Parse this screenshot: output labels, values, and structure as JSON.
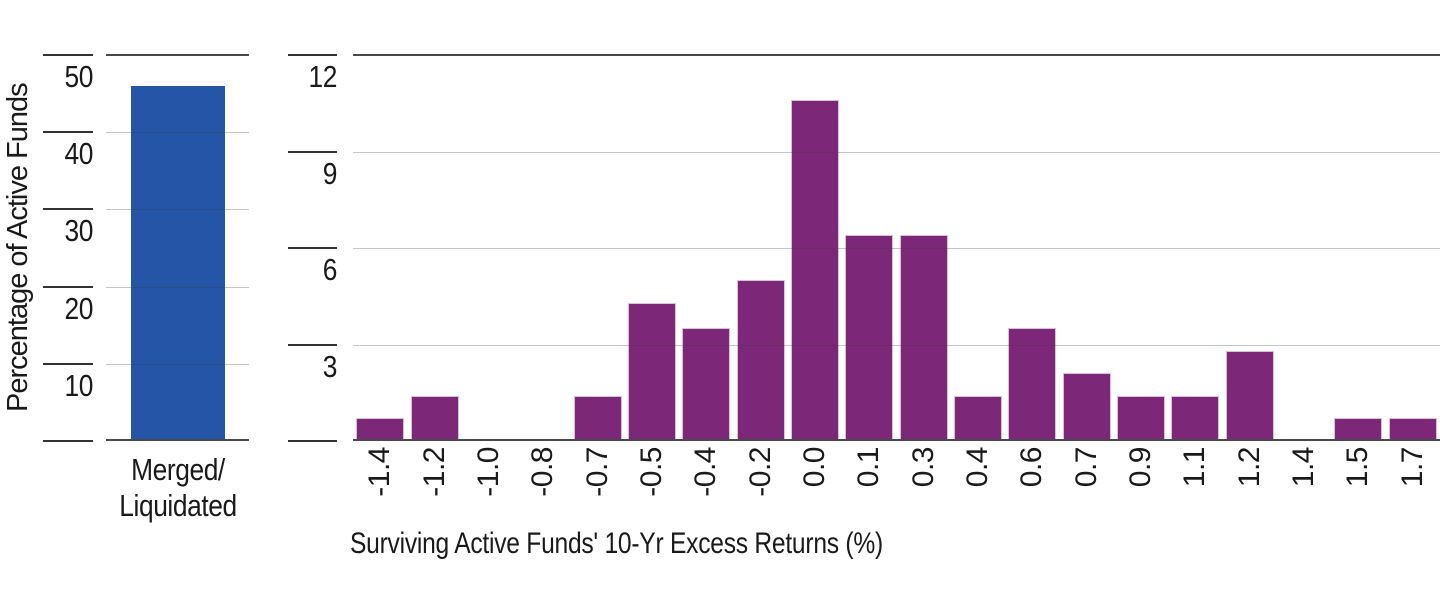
{
  "colors": {
    "blue_bar": "#2555A6",
    "purple_bar": "#7D2779",
    "dark_line": "#4A4A4C",
    "light_grid": "#C7C7C9",
    "text": "#1A1A1A"
  },
  "chart_data": [
    {
      "type": "bar",
      "panel": "left",
      "title": "",
      "ylabel": "Percentage of Active Funds",
      "xlabel": "",
      "categories": [
        "Merged/Liquidated"
      ],
      "category_lines": [
        "Merged/",
        "Liquidated"
      ],
      "values": [
        46
      ],
      "ylim": [
        0,
        50
      ],
      "yticks": [
        10,
        20,
        30,
        40,
        50
      ],
      "ytick_labels": [
        "50",
        "40",
        "30",
        "20",
        "10"
      ],
      "grid": true,
      "legend": "none",
      "bar_color": "#2555A6"
    },
    {
      "type": "bar",
      "panel": "right",
      "title": "",
      "ylabel": "",
      "xlabel": "Surviving Active Funds' 10-Yr Excess Returns (%)",
      "categories": [
        "-1.4",
        "-1.2",
        "-1.0",
        "-0.8",
        "-0.7",
        "-0.5",
        "-0.4",
        "-0.2",
        "0.0",
        "0.1",
        "0.3",
        "0.4",
        "0.6",
        "0.7",
        "0.9",
        "1.1",
        "1.2",
        "1.4",
        "1.5",
        "1.7"
      ],
      "values": [
        0.7,
        1.4,
        0,
        0,
        1.4,
        4.3,
        3.5,
        5.0,
        10.6,
        6.4,
        6.4,
        1.4,
        3.5,
        2.1,
        1.4,
        1.4,
        2.8,
        0,
        0.7,
        0.7
      ],
      "ylim": [
        0,
        12
      ],
      "yticks": [
        3,
        6,
        9,
        12
      ],
      "ytick_labels": [
        "12",
        "9",
        "6",
        "3"
      ],
      "grid": true,
      "legend": "none",
      "bar_color": "#7D2779"
    }
  ]
}
